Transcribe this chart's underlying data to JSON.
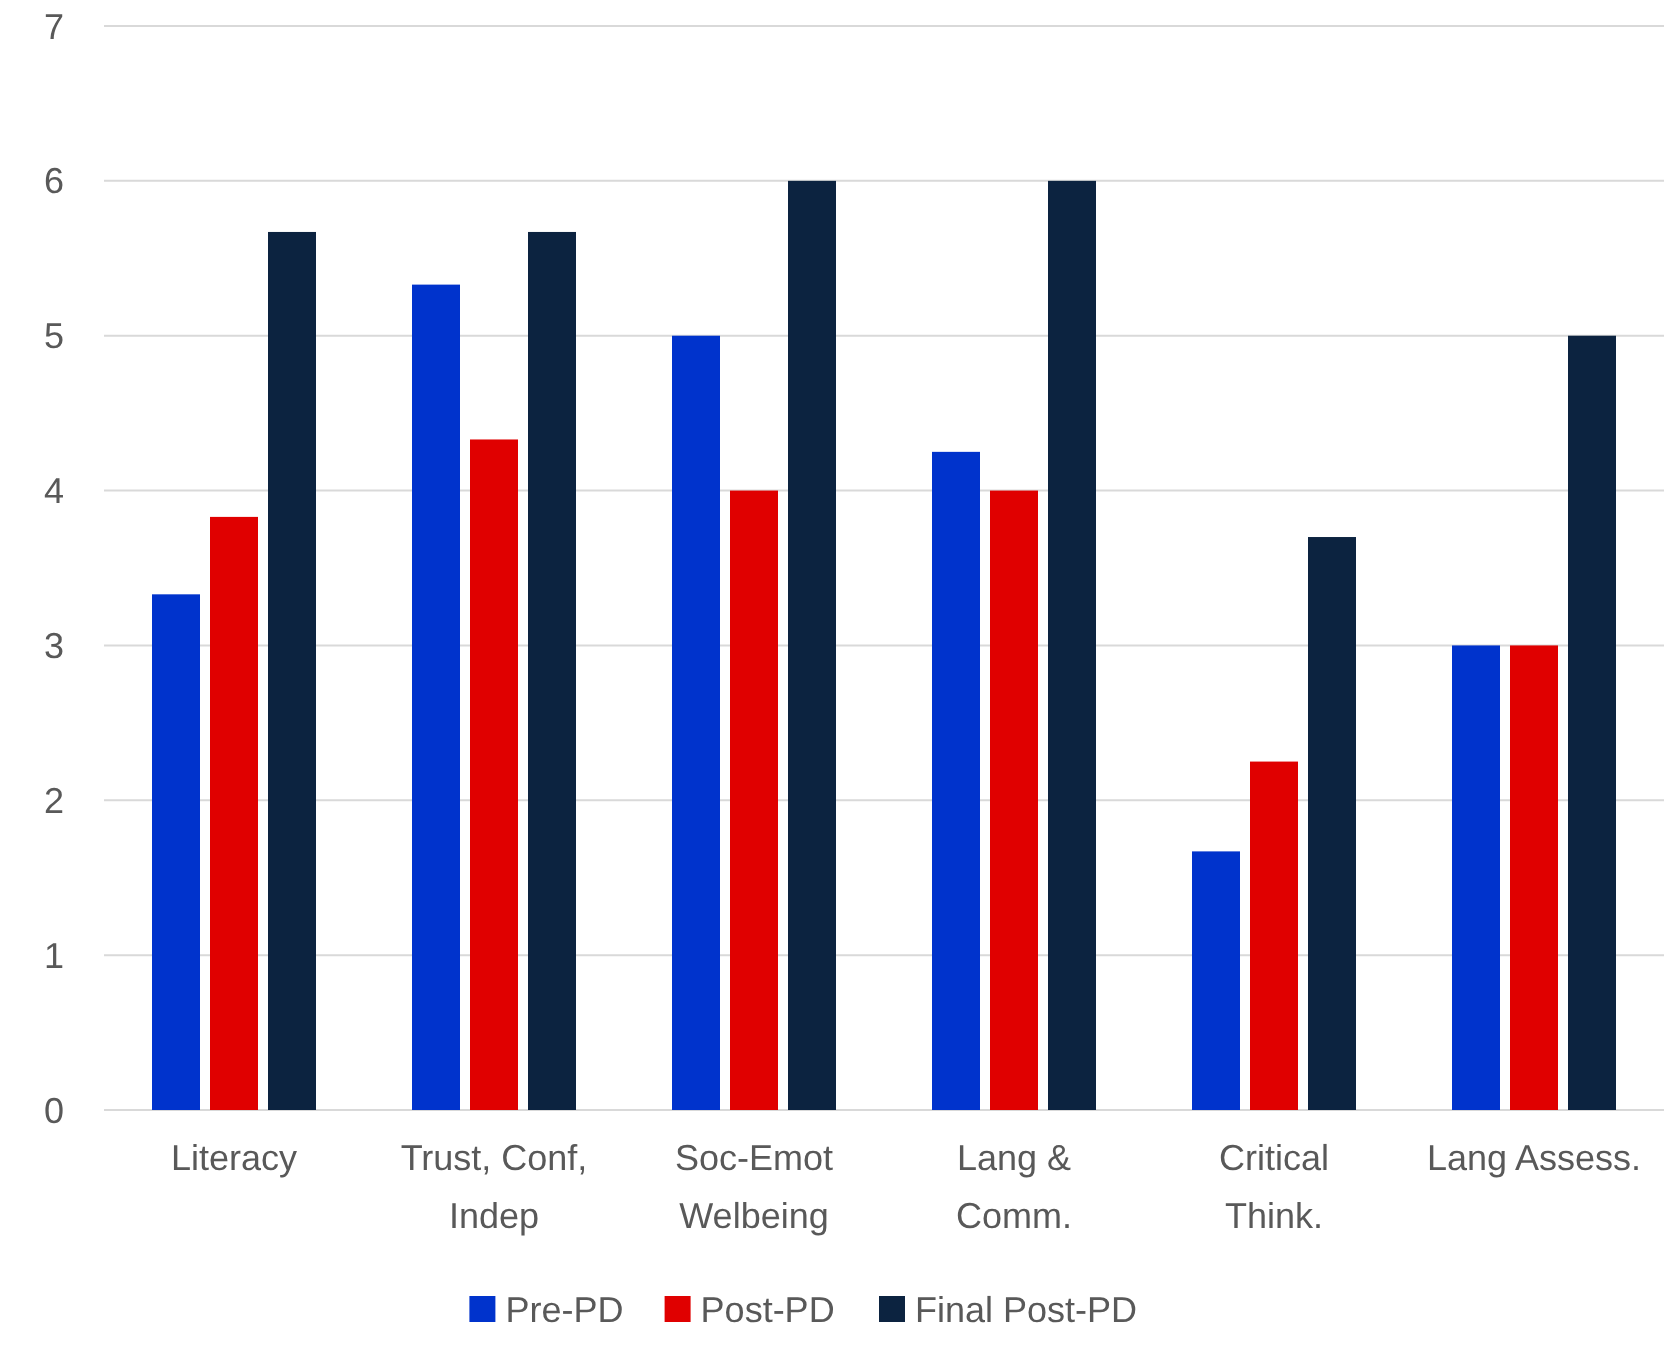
{
  "chart_data": {
    "type": "bar",
    "categories": [
      "Literacy",
      "Trust, Conf,\nIndep",
      "Soc-Emot\nWelbeing",
      "Lang &\nComm.",
      "Critical\nThink.",
      "Lang Assess."
    ],
    "series": [
      {
        "name": "Pre-PD",
        "color": "#0033cc",
        "values": [
          3.33,
          5.33,
          5,
          4.25,
          1.67,
          3
        ]
      },
      {
        "name": "Post-PD",
        "color": "#e00000",
        "values": [
          3.83,
          4.33,
          4,
          4,
          2.25,
          3
        ]
      },
      {
        "name": "Final Post-PD",
        "color": "#0c2340",
        "values": [
          5.67,
          5.67,
          6,
          6,
          3.7,
          5
        ]
      }
    ],
    "ylim": [
      0,
      7
    ],
    "yticks": [
      0,
      1,
      2,
      3,
      4,
      5,
      6,
      7
    ],
    "grid": "y",
    "legend": "bottom"
  }
}
